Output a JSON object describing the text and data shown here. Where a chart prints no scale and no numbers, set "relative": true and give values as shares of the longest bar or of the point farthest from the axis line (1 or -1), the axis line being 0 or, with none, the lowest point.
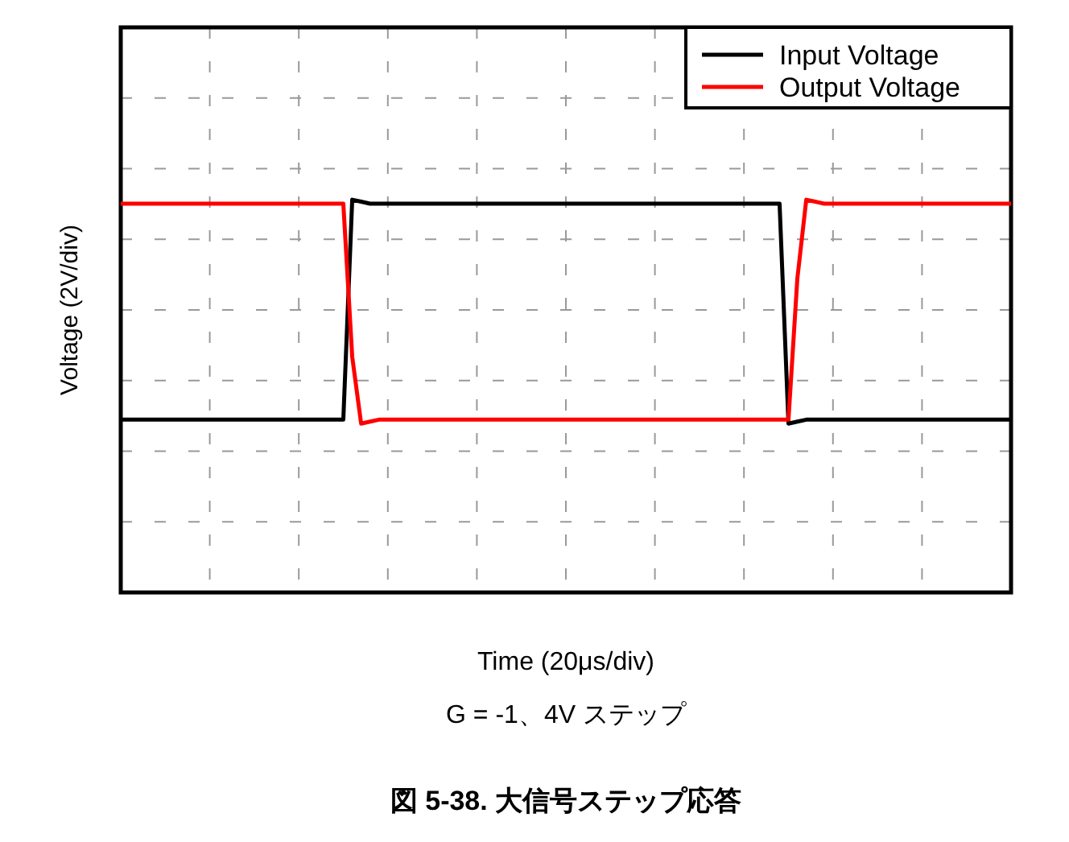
{
  "chart_data": {
    "type": "line",
    "title": "図 5-38. 大信号ステップ応答",
    "xlabel": "Time (20μs/div)",
    "ylabel": "Voltage (2V/div)",
    "annotations": [
      "G = -1、4V ステップ"
    ],
    "relative": true,
    "grid": true,
    "legend": "top right",
    "categories": [
      null,
      null,
      null,
      null,
      null,
      null,
      null,
      null,
      null,
      null,
      null,
      null,
      null,
      null,
      null,
      null,
      null,
      null,
      null,
      null,
      null,
      null,
      null,
      null,
      null,
      null,
      null,
      null,
      null,
      null,
      null,
      null,
      null,
      null,
      null,
      null,
      null,
      null,
      null,
      null,
      null,
      null,
      null,
      null,
      null,
      null,
      null,
      null,
      null,
      null,
      null,
      null,
      null,
      null,
      null,
      null,
      null,
      null,
      null,
      null,
      null,
      null,
      null,
      null,
      null,
      null,
      null,
      null,
      null,
      null,
      null,
      null,
      null,
      null,
      null,
      null,
      null,
      null,
      null,
      null,
      null,
      null,
      null,
      null,
      null,
      null,
      null,
      null,
      null,
      null,
      null,
      null,
      null,
      null,
      null,
      null,
      null,
      null,
      null,
      null,
      null
    ],
    "series": [
      {
        "name": "Input Voltage",
        "color": "#000000",
        "values": [
          0.44,
          0.44,
          0.44,
          0.44,
          0.44,
          0.44,
          0.44,
          0.44,
          0.44,
          0.44,
          0.44,
          0.44,
          0.44,
          0.44,
          0.44,
          0.44,
          0.44,
          0.44,
          0.44,
          0.44,
          0.44,
          0.44,
          0.44,
          0.44,
          0.44,
          0.44,
          1.0,
          0.995,
          0.99,
          0.99,
          0.99,
          0.99,
          0.99,
          0.99,
          0.99,
          0.99,
          0.99,
          0.99,
          0.99,
          0.99,
          0.99,
          0.99,
          0.99,
          0.99,
          0.99,
          0.99,
          0.99,
          0.99,
          0.99,
          0.99,
          0.99,
          0.99,
          0.99,
          0.99,
          0.99,
          0.99,
          0.99,
          0.99,
          0.99,
          0.99,
          0.99,
          0.99,
          0.99,
          0.99,
          0.99,
          0.99,
          0.99,
          0.99,
          0.99,
          0.99,
          0.99,
          0.99,
          0.99,
          0.99,
          0.99,
          0.43,
          0.435,
          0.44,
          0.44,
          0.44,
          0.44,
          0.44,
          0.44,
          0.44,
          0.44,
          0.44,
          0.44,
          0.44,
          0.44,
          0.44,
          0.44,
          0.44,
          0.44,
          0.44,
          0.44,
          0.44,
          0.44,
          0.44,
          0.44,
          0.44,
          0.44
        ]
      },
      {
        "name": "Output Voltage",
        "color": "#ff0000",
        "values": [
          0.99,
          0.99,
          0.99,
          0.99,
          0.99,
          0.99,
          0.99,
          0.99,
          0.99,
          0.99,
          0.99,
          0.99,
          0.99,
          0.99,
          0.99,
          0.99,
          0.99,
          0.99,
          0.99,
          0.99,
          0.99,
          0.99,
          0.99,
          0.99,
          0.99,
          0.99,
          0.6,
          0.43,
          0.435,
          0.44,
          0.44,
          0.44,
          0.44,
          0.44,
          0.44,
          0.44,
          0.44,
          0.44,
          0.44,
          0.44,
          0.44,
          0.44,
          0.44,
          0.44,
          0.44,
          0.44,
          0.44,
          0.44,
          0.44,
          0.44,
          0.44,
          0.44,
          0.44,
          0.44,
          0.44,
          0.44,
          0.44,
          0.44,
          0.44,
          0.44,
          0.44,
          0.44,
          0.44,
          0.44,
          0.44,
          0.44,
          0.44,
          0.44,
          0.44,
          0.44,
          0.44,
          0.44,
          0.44,
          0.44,
          0.44,
          0.44,
          0.8,
          1.0,
          0.995,
          0.99,
          0.99,
          0.99,
          0.99,
          0.99,
          0.99,
          0.99,
          0.99,
          0.99,
          0.99,
          0.99,
          0.99,
          0.99,
          0.99,
          0.99,
          0.99,
          0.99,
          0.99,
          0.99,
          0.99,
          0.99,
          0.99
        ]
      }
    ]
  }
}
